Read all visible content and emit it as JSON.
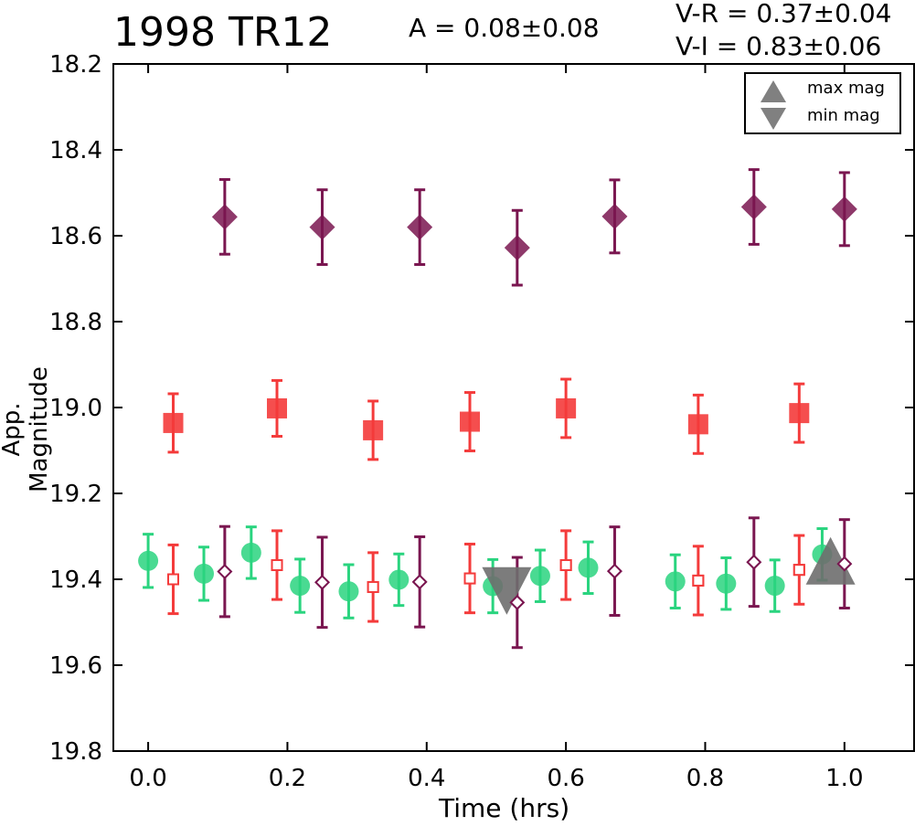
{
  "header": {
    "title": "1998 TR12",
    "amplitude": "A  = 0.08±0.08",
    "color_vr": "V-R = 0.37±0.04",
    "color_vi": "V-I  = 0.83±0.06"
  },
  "legend": {
    "items": [
      {
        "label": "max mag",
        "marker": "triangle-up",
        "color": "#808080"
      },
      {
        "label": "min mag",
        "marker": "triangle-down",
        "color": "#808080"
      }
    ]
  },
  "chart_data": {
    "type": "scatter",
    "title": "1998 TR12",
    "xlabel": "Time (hrs)",
    "ylabel": "App. Magnitude",
    "xlim": [
      -0.05,
      1.1
    ],
    "ylim": [
      19.8,
      18.2
    ],
    "y_inverted": true,
    "xticks": [
      "0.0",
      "0.2",
      "0.4",
      "0.6",
      "0.8",
      "1.0"
    ],
    "yticks": [
      "18.2",
      "18.4",
      "18.6",
      "18.8",
      "19.0",
      "19.2",
      "19.4",
      "19.6",
      "19.8"
    ],
    "grid": false,
    "legend_position": "top-right",
    "series": [
      {
        "marker": "diamond-filled",
        "color": "#7a1650",
        "x": [
          0.11,
          0.25,
          0.39,
          0.53,
          0.67,
          0.87,
          1.0
        ],
        "y": [
          18.556,
          18.58,
          18.58,
          18.628,
          18.555,
          18.533,
          18.538
        ],
        "err": [
          0.087,
          0.087,
          0.087,
          0.087,
          0.085,
          0.087,
          0.085
        ]
      },
      {
        "marker": "square-filled",
        "color": "#f43b3b",
        "x": [
          0.036,
          0.185,
          0.323,
          0.462,
          0.6,
          0.79,
          0.935
        ],
        "y": [
          19.036,
          19.002,
          19.053,
          19.033,
          19.002,
          19.039,
          19.013
        ],
        "err": [
          0.068,
          0.065,
          0.068,
          0.068,
          0.068,
          0.068,
          0.068
        ]
      },
      {
        "marker": "circle-filled",
        "color": "#2ad47f",
        "x": [
          0.0,
          0.08,
          0.148,
          0.218,
          0.288,
          0.36,
          0.495,
          0.563,
          0.632,
          0.757,
          0.83,
          0.9,
          0.968
        ],
        "y": [
          19.357,
          19.387,
          19.338,
          19.415,
          19.428,
          19.401,
          19.416,
          19.392,
          19.373,
          19.405,
          19.41,
          19.415,
          19.342
        ],
        "err": [
          0.062,
          0.062,
          0.06,
          0.062,
          0.062,
          0.06,
          0.062,
          0.06,
          0.06,
          0.062,
          0.06,
          0.06,
          0.06
        ]
      },
      {
        "marker": "square-open",
        "color": "#f43b3b",
        "x": [
          0.036,
          0.185,
          0.323,
          0.462,
          0.6,
          0.79,
          0.935
        ],
        "y": [
          19.4,
          19.367,
          19.418,
          19.398,
          19.367,
          19.403,
          19.378
        ],
        "err": [
          0.08,
          0.08,
          0.08,
          0.08,
          0.08,
          0.08,
          0.08
        ]
      },
      {
        "marker": "diamond-open",
        "color": "#7a1650",
        "x": [
          0.11,
          0.25,
          0.39,
          0.53,
          0.67,
          0.87,
          1.0
        ],
        "y": [
          19.382,
          19.407,
          19.406,
          19.454,
          19.381,
          19.36,
          19.364
        ],
        "err": [
          0.105,
          0.105,
          0.105,
          0.105,
          0.103,
          0.103,
          0.103
        ]
      }
    ],
    "extrema": [
      {
        "label": "min mag",
        "marker": "triangle-down",
        "x": 0.515,
        "y": 19.427
      },
      {
        "label": "max mag",
        "marker": "triangle-up",
        "x": 0.98,
        "y": 19.357
      }
    ]
  }
}
